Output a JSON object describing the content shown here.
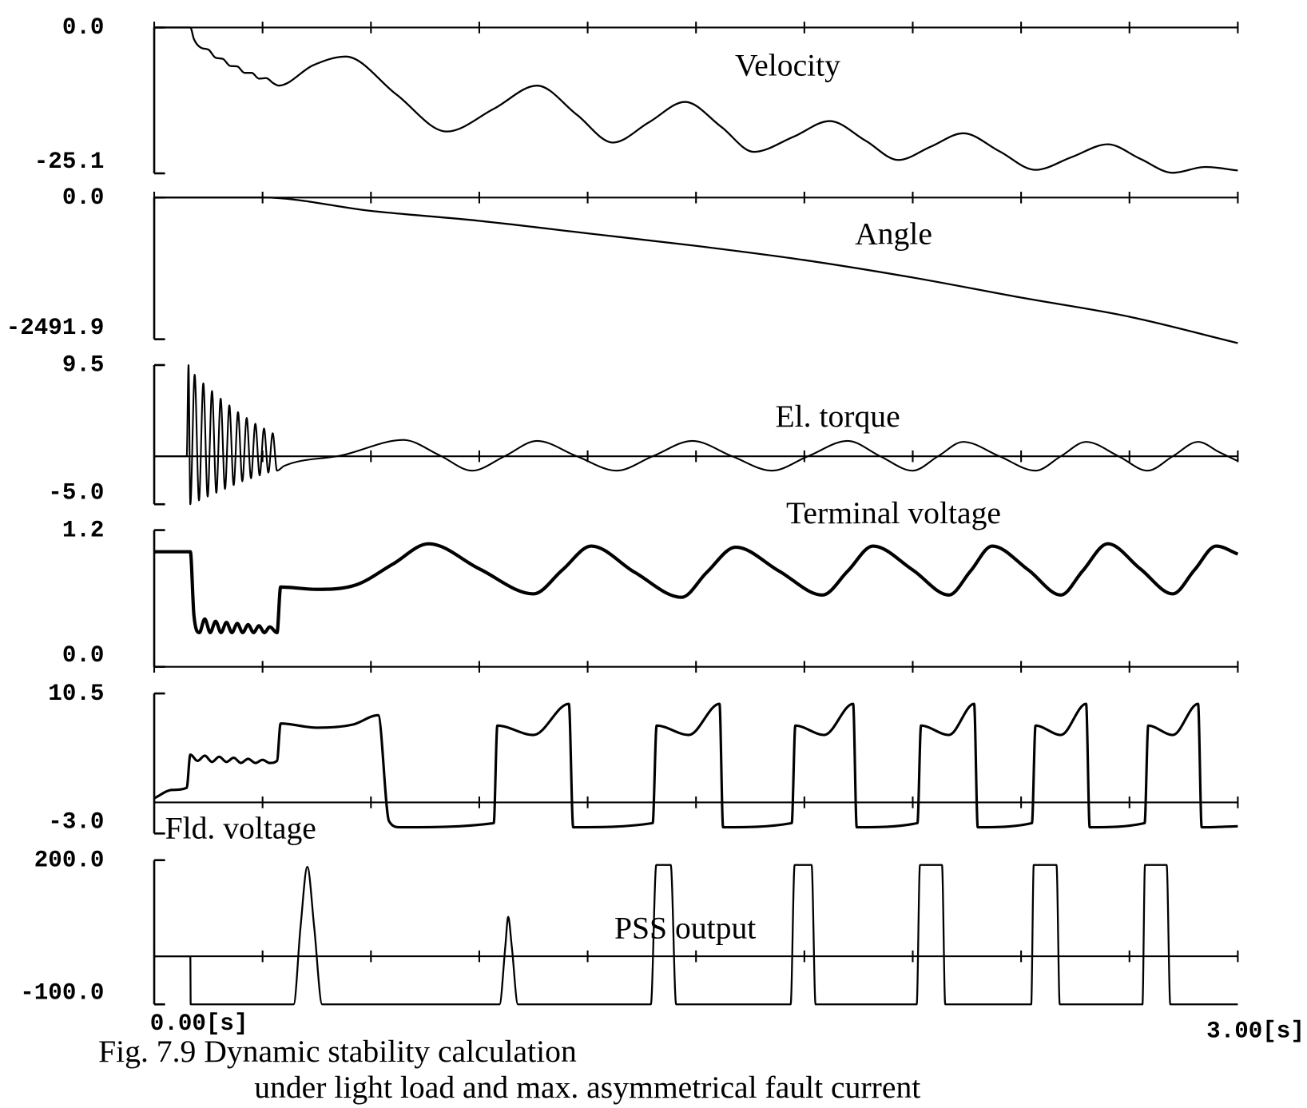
{
  "chart_data": [
    {
      "type": "line",
      "title": "Velocity",
      "x": [
        0,
        0.1,
        0.11,
        0.13,
        0.15,
        0.17,
        0.19,
        0.21,
        0.23,
        0.25,
        0.27,
        0.29,
        0.31,
        0.33,
        0.345,
        0.44,
        0.53,
        0.67,
        0.81,
        0.94,
        1.06,
        1.17,
        1.27,
        1.37,
        1.47,
        1.57,
        1.66,
        1.77,
        1.87,
        1.97,
        2.06,
        2.15,
        2.24,
        2.34,
        2.44,
        2.54,
        2.64,
        2.73,
        2.82,
        2.91,
        3.0
      ],
      "values": [
        0,
        0,
        -2,
        -3.5,
        -3.8,
        -5.2,
        -5.4,
        -6.6,
        -6.7,
        -7.8,
        -7.8,
        -8.8,
        -8.7,
        -9.6,
        -10,
        -6.5,
        -5,
        -11.5,
        -17.9,
        -14,
        -10,
        -15,
        -19.8,
        -16.3,
        -12.8,
        -17.1,
        -21.4,
        -18.8,
        -16.1,
        -19.5,
        -22.8,
        -20.5,
        -18.2,
        -21.3,
        -24.5,
        -22.3,
        -20.1,
        -22.6,
        -25,
        -24,
        -24.6
      ],
      "ylim": [
        -25.1,
        0
      ],
      "yticks": [
        {
          "value": 0,
          "label": "0.0"
        },
        {
          "value": -25.1,
          "label": "-25.1"
        }
      ],
      "xticks": [
        0,
        0.3,
        0.6,
        0.9,
        1.2,
        1.5,
        1.8,
        2.1,
        2.4,
        2.7,
        3.0
      ],
      "color": "#000000"
    },
    {
      "type": "line",
      "title": "Angle",
      "x": [
        0,
        0.3,
        0.6,
        0.9,
        1.2,
        1.5,
        1.8,
        2.1,
        2.4,
        2.7,
        3.0
      ],
      "values": [
        0,
        0,
        -235,
        -410,
        -630,
        -850,
        -1100,
        -1407,
        -1760,
        -2096,
        -2560
      ],
      "ylim": [
        -2491.9,
        0
      ],
      "yticks": [
        {
          "value": 0,
          "label": "0.0"
        },
        {
          "value": -2491.9,
          "label": "-2491.9"
        }
      ],
      "xticks": [
        0,
        0.3,
        0.6,
        0.9,
        1.2,
        1.5,
        1.8,
        2.1,
        2.4,
        2.7,
        3.0
      ],
      "color": "#000000"
    },
    {
      "type": "line",
      "title": "El. torque",
      "x": [
        0,
        0.09,
        0.095,
        0.1,
        0.112,
        0.124,
        0.136,
        0.148,
        0.16,
        0.172,
        0.184,
        0.196,
        0.208,
        0.22,
        0.232,
        0.244,
        0.256,
        0.268,
        0.28,
        0.292,
        0.304,
        0.316,
        0.328,
        0.34,
        0.36,
        0.52,
        0.69,
        0.79,
        0.88,
        0.97,
        1.06,
        1.17,
        1.28,
        1.38,
        1.49,
        1.6,
        1.71,
        1.81,
        1.92,
        2.01,
        2.1,
        2.17,
        2.24,
        2.34,
        2.44,
        2.51,
        2.58,
        2.67,
        2.75,
        2.82,
        2.89,
        2.95,
        3.0
      ],
      "values": [
        0,
        0,
        9.5,
        -5,
        8.5,
        -4.6,
        7.6,
        -4.2,
        6.8,
        -3.8,
        6,
        -3.4,
        5.3,
        -3,
        4.6,
        -2.6,
        4,
        -2.3,
        3.4,
        -2,
        2.9,
        -1.7,
        2.4,
        -1.5,
        -1,
        0.1,
        1.7,
        0.1,
        -1.5,
        0,
        1.6,
        0,
        -1.5,
        0,
        1.6,
        0,
        -1.5,
        0,
        1.6,
        0,
        -1.5,
        0,
        1.5,
        0,
        -1.5,
        0,
        1.5,
        0,
        -1.5,
        0,
        1.5,
        0.4,
        -0.5
      ],
      "ylim": [
        -5.0,
        9.5
      ],
      "yticks": [
        {
          "value": 9.5,
          "label": "9.5"
        },
        {
          "value": -5.0,
          "label": "-5.0"
        }
      ],
      "xticks": [
        0,
        0.3,
        0.6,
        0.9,
        1.2,
        1.5,
        1.8,
        2.1,
        2.4,
        2.7,
        3.0
      ],
      "color": "#000000"
    },
    {
      "type": "line",
      "title": "Terminal voltage",
      "x": [
        0,
        0.1,
        0.11,
        0.125,
        0.14,
        0.155,
        0.17,
        0.185,
        0.2,
        0.215,
        0.23,
        0.245,
        0.26,
        0.275,
        0.29,
        0.305,
        0.32,
        0.34,
        0.35,
        0.45,
        0.56,
        0.66,
        0.76,
        0.9,
        1.05,
        1.13,
        1.21,
        1.33,
        1.46,
        1.53,
        1.61,
        1.73,
        1.85,
        1.92,
        1.99,
        2.1,
        2.2,
        2.26,
        2.32,
        2.42,
        2.51,
        2.57,
        2.64,
        2.73,
        2.82,
        2.88,
        2.94,
        3.0
      ],
      "values": [
        1.01,
        1.01,
        0.45,
        0.3,
        0.42,
        0.3,
        0.4,
        0.3,
        0.39,
        0.3,
        0.38,
        0.3,
        0.37,
        0.3,
        0.36,
        0.3,
        0.35,
        0.3,
        0.7,
        0.68,
        0.72,
        0.9,
        1.08,
        0.86,
        0.64,
        0.85,
        1.06,
        0.83,
        0.61,
        0.83,
        1.05,
        0.84,
        0.63,
        0.84,
        1.06,
        0.85,
        0.63,
        0.84,
        1.06,
        0.85,
        0.63,
        0.84,
        1.08,
        0.86,
        0.64,
        0.85,
        1.06,
        0.99
      ],
      "ylim": [
        0.0,
        1.2
      ],
      "yticks": [
        {
          "value": 1.2,
          "label": "1.2"
        },
        {
          "value": 0,
          "label": "0.0"
        }
      ],
      "xticks": [
        0,
        0.3,
        0.6,
        0.9,
        1.2,
        1.5,
        1.8,
        2.1,
        2.4,
        2.7,
        3.0
      ],
      "color": "#000000"
    },
    {
      "type": "line",
      "title": "Fld. voltage",
      "x": [
        0,
        0.05,
        0.09,
        0.1,
        0.12,
        0.14,
        0.16,
        0.18,
        0.2,
        0.22,
        0.24,
        0.26,
        0.28,
        0.3,
        0.32,
        0.34,
        0.35,
        0.45,
        0.55,
        0.62,
        0.65,
        0.68,
        0.94,
        0.95,
        1.05,
        1.148,
        1.16,
        1.38,
        1.391,
        1.48,
        1.565,
        1.575,
        1.765,
        1.775,
        1.855,
        1.935,
        1.945,
        2.113,
        2.123,
        2.2,
        2.27,
        2.28,
        2.43,
        2.44,
        2.51,
        2.58,
        2.59,
        2.742,
        2.752,
        2.82,
        2.89,
        2.9,
        3.0
      ],
      "values": [
        0.4,
        1.2,
        1.4,
        4.6,
        4,
        4.5,
        3.9,
        4.4,
        3.9,
        4.3,
        3.8,
        4.2,
        3.8,
        4.1,
        3.8,
        4,
        7.6,
        7.2,
        7.5,
        8.4,
        -1.8,
        -2.4,
        -2,
        7.4,
        6.5,
        9.5,
        -2.4,
        -2,
        7.4,
        6.5,
        9.5,
        -2.4,
        -2,
        7.4,
        6.5,
        9.5,
        -2.4,
        -2,
        7.4,
        6.5,
        9.5,
        -2.4,
        -2,
        7.4,
        6.5,
        9.5,
        -2.4,
        -2,
        7.4,
        6.5,
        9.5,
        -2.4,
        -2.3
      ],
      "ylim": [
        -3.0,
        10.5
      ],
      "yticks": [
        {
          "value": 10.5,
          "label": "10.5"
        },
        {
          "value": -3.0,
          "label": "-3.0"
        }
      ],
      "xticks": [
        0,
        0.3,
        0.6,
        0.9,
        1.2,
        1.5,
        1.8,
        2.1,
        2.4,
        2.7,
        3.0
      ],
      "color": "#000000"
    },
    {
      "type": "line",
      "title": "PSS output",
      "x": [
        0,
        0.1,
        0.101,
        0.386,
        0.405,
        0.424,
        0.443,
        0.465,
        0.956,
        0.972,
        0.98,
        0.99,
        1.007,
        1.375,
        1.39,
        1.43,
        1.445,
        1.762,
        1.773,
        1.82,
        1.831,
        2.111,
        2.12,
        2.181,
        2.19,
        2.428,
        2.435,
        2.498,
        2.507,
        2.736,
        2.743,
        2.803,
        2.813,
        3.0
      ],
      "values": [
        0,
        0,
        -100,
        -100,
        60,
        186,
        60,
        -100,
        -100,
        20,
        82,
        20,
        -100,
        -100,
        190,
        190,
        -100,
        -100,
        190,
        190,
        -100,
        -100,
        190,
        190,
        -100,
        -100,
        190,
        190,
        -100,
        -100,
        190,
        190,
        -100,
        -100
      ],
      "ylim": [
        -100.0,
        200.0
      ],
      "yticks": [
        {
          "value": 200,
          "label": "200.0"
        },
        {
          "value": -100,
          "label": "-100.0"
        }
      ],
      "xticks": [
        0,
        0.3,
        0.6,
        0.9,
        1.2,
        1.5,
        1.8,
        2.1,
        2.4,
        2.7,
        3.0
      ],
      "color": "#000000"
    }
  ],
  "x_axis": {
    "xlim": [
      0,
      3
    ],
    "xticks": [
      {
        "value": 0,
        "label": "0.00[s]"
      },
      {
        "value": 3,
        "label": "3.00[s]"
      }
    ]
  },
  "caption": [
    "Fig. 7.9 Dynamic stability calculation",
    "under light load and max. asymmetrical fault current"
  ]
}
